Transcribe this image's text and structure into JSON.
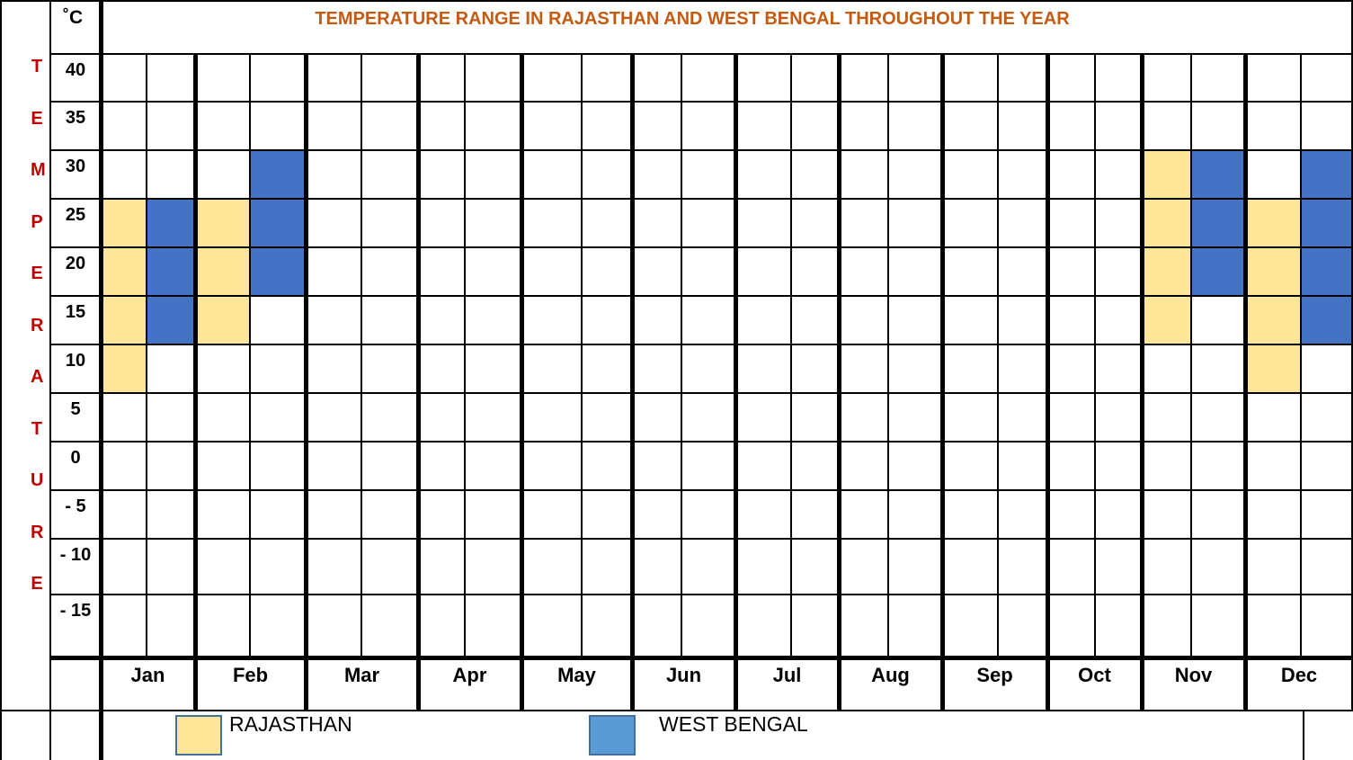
{
  "title": "TEMPERATURE RANGE IN RAJASTHAN AND WEST BENGAL THROUGHOUT THE YEAR",
  "unit": "˚C",
  "axis_label": "TEMPERATURE",
  "rows": [
    40,
    35,
    30,
    25,
    20,
    15,
    10,
    5,
    0,
    {
      "value": -5,
      "label": "- 5"
    },
    {
      "value": -10,
      "label": "- 10"
    },
    {
      "value": -15,
      "label": "- 15"
    }
  ],
  "months": [
    "Jan",
    "Feb",
    "Mar",
    "Apr",
    "May",
    "Jun",
    "Jul",
    "Aug",
    "Sep",
    "Oct",
    "Nov",
    "Dec"
  ],
  "series": [
    {
      "name": "RAJASTHAN",
      "color": "#ffe699",
      "legend_color": "#ffe699",
      "ranges": [
        [
          10,
          25
        ],
        [
          15,
          25
        ],
        null,
        null,
        null,
        null,
        null,
        null,
        null,
        null,
        [
          15,
          30
        ],
        [
          10,
          25
        ]
      ]
    },
    {
      "name": "WEST BENGAL",
      "color": "#4472c4",
      "legend_color": "#5b9bd5",
      "ranges": [
        [
          15,
          25
        ],
        [
          20,
          30
        ],
        null,
        null,
        null,
        null,
        null,
        null,
        null,
        null,
        [
          20,
          30
        ],
        [
          15,
          30
        ]
      ]
    }
  ]
}
